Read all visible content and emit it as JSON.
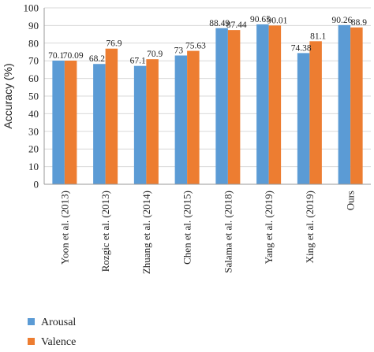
{
  "chart_data": {
    "type": "bar",
    "ylabel": "Accuracy (%)",
    "ylim": [
      0,
      100
    ],
    "yticks": [
      0,
      10,
      20,
      30,
      40,
      50,
      60,
      70,
      80,
      90,
      100
    ],
    "grid": "horizontal",
    "legend_position": "bottom-left",
    "categories": [
      "Yoon et al. (2013)",
      "Rozgic et al. (2013)",
      "Zhuang et al. (2014)",
      "Chen et al. (2015)",
      "Salama et al. (2018)",
      "Yang et al. (2019)",
      "Xing et al. (2019)",
      "Ours"
    ],
    "series": [
      {
        "name": "Arousal",
        "color": "#5b9bd5",
        "values": [
          70.1,
          68.2,
          67.1,
          73,
          88.49,
          90.65,
          74.38,
          90.26
        ],
        "labels": [
          "70.1",
          "68.2",
          "67.1",
          "73",
          "88.49",
          "90.65",
          "74.38",
          "90.26"
        ]
      },
      {
        "name": "Valence",
        "color": "#ed7d31",
        "values": [
          70.09,
          76.9,
          70.9,
          75.63,
          87.44,
          90.01,
          81.1,
          88.9
        ],
        "labels": [
          "70.09",
          "76.9",
          "70.9",
          "75.63",
          "87.44",
          "90.01",
          "81.1",
          "88.9"
        ]
      }
    ]
  }
}
